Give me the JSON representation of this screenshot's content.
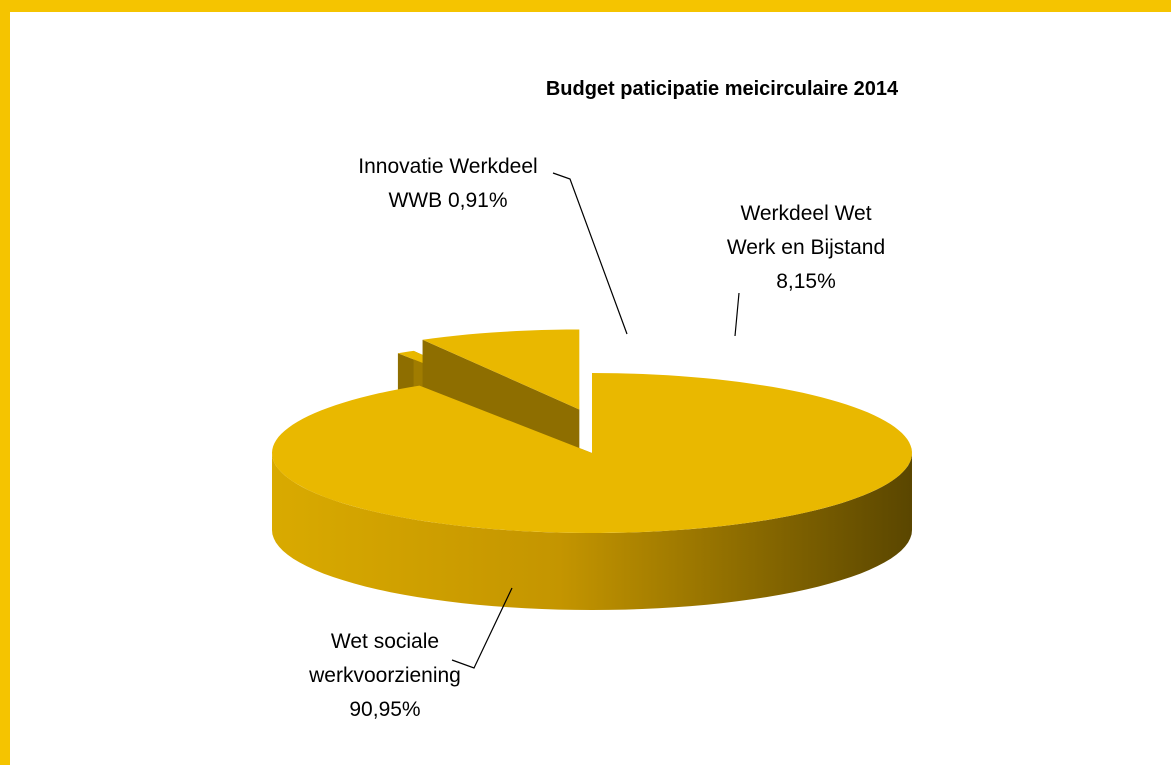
{
  "chart_data": {
    "type": "pie",
    "style": "3d-exploded",
    "title": "Budget paticipatie meicirculaire 2014",
    "slices": [
      {
        "name": "Wet sociale werkvoorziening",
        "value": 90.95,
        "label_lines": [
          "Wet sociale",
          "werkvoorziening",
          "90,95%"
        ]
      },
      {
        "name": "Innovatie Werkdeel WWB",
        "value": 0.91,
        "label_lines": [
          "Innovatie Werkdeel",
          "WWB 0,91%"
        ]
      },
      {
        "name": "Werkdeel Wet Werk en Bijstand",
        "value": 8.15,
        "label_lines": [
          "Werkdeel Wet",
          "Werk en Bijstand",
          "8,15%"
        ]
      }
    ],
    "color": "#e9b800"
  }
}
